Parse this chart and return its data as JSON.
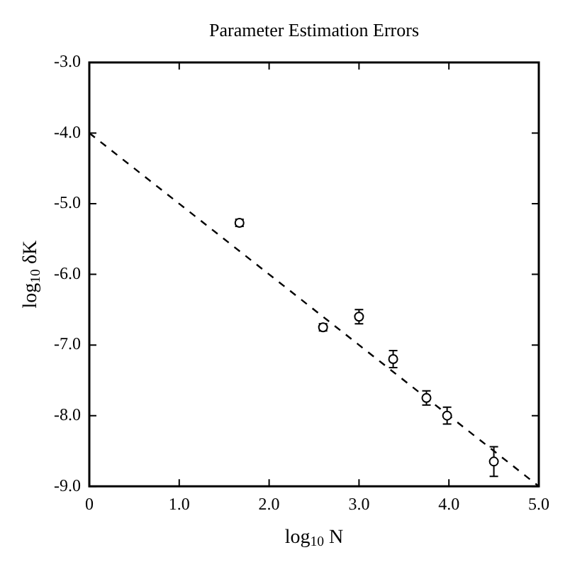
{
  "chart_data": {
    "type": "scatter",
    "title": "Parameter Estimation Errors",
    "xlabel": "log$_{10}$ N",
    "ylabel": "log$_{10}$ δK",
    "xlim": [
      0,
      5
    ],
    "xticks": [
      {
        "value": 0,
        "label": "0"
      },
      {
        "value": 1,
        "label": "1.0"
      },
      {
        "value": 2,
        "label": "2.0"
      },
      {
        "value": 3,
        "label": "3.0"
      },
      {
        "value": 4,
        "label": "4.0"
      },
      {
        "value": 5,
        "label": "5.0"
      }
    ],
    "ylim": [
      -9,
      -3
    ],
    "yticks": [
      {
        "value": -9,
        "label": "-9.0"
      },
      {
        "value": -8,
        "label": "-8.0"
      },
      {
        "value": -7,
        "label": "-7.0"
      },
      {
        "value": -6,
        "label": "-6.0"
      },
      {
        "value": -5,
        "label": "-5.0"
      },
      {
        "value": -4,
        "label": "-4.0"
      },
      {
        "value": -3,
        "label": "-3.0"
      }
    ],
    "grid": false,
    "legend": false,
    "marker": "circle",
    "series": [
      {
        "type": "scatter",
        "color": "#000000",
        "x": [
          1.67,
          2.6,
          3.0,
          3.38,
          3.75,
          3.98,
          4.5
        ],
        "values": [
          -5.27,
          -6.75,
          -6.6,
          -7.2,
          -7.75,
          -8.0,
          -8.65
        ],
        "errors": [
          0.05,
          0.05,
          0.1,
          0.12,
          0.1,
          0.12,
          0.21
        ]
      },
      {
        "type": "line",
        "color": "#000000",
        "line_style": "dashed",
        "marker": "none",
        "x": [
          0,
          5
        ],
        "values": [
          -4.0,
          -9.0
        ]
      }
    ]
  }
}
